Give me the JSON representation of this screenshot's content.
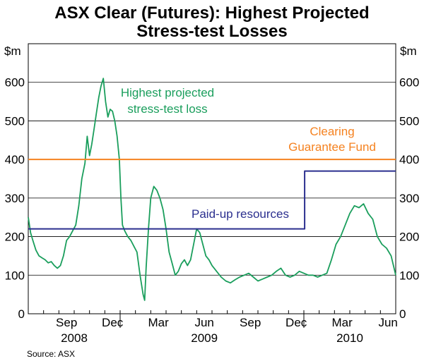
{
  "chart_data": {
    "type": "line",
    "title_line1": "ASX Clear (Futures): Highest Projected",
    "title_line2": "Stress-test Losses",
    "unit_left": "$m",
    "unit_right": "$m",
    "source": "Source: ASX",
    "ylim": [
      0,
      700
    ],
    "yticks": [
      "0",
      "100",
      "200",
      "300",
      "400",
      "500",
      "600"
    ],
    "ytick_values": [
      0,
      100,
      200,
      300,
      400,
      500,
      600
    ],
    "grid": true,
    "x_month_labels": [
      {
        "label": "Sep",
        "t": 2.5
      },
      {
        "label": "Dec",
        "t": 5.5
      },
      {
        "label": "Mar",
        "t": 8.5
      },
      {
        "label": "Jun",
        "t": 11.5
      },
      {
        "label": "Sep",
        "t": 14.5
      },
      {
        "label": "Dec",
        "t": 17.5
      },
      {
        "label": "Mar",
        "t": 20.5
      },
      {
        "label": "Jun",
        "t": 23.5
      }
    ],
    "x_year_labels": [
      {
        "label": "2008",
        "t": 3
      },
      {
        "label": "2009",
        "t": 11.5
      },
      {
        "label": "2010",
        "t": 21
      }
    ],
    "x_major_ticks": [
      6,
      18
    ],
    "x_range": [
      0,
      24
    ],
    "series": [
      {
        "name": "Highest projected stress-test loss",
        "label_line1": "Highest projected",
        "label_line2": "stress-test loss",
        "color": "#1a9e5c",
        "points": [
          [
            0.0,
            250
          ],
          [
            0.15,
            210
          ],
          [
            0.3,
            190
          ],
          [
            0.5,
            165
          ],
          [
            0.7,
            150
          ],
          [
            0.9,
            145
          ],
          [
            1.1,
            140
          ],
          [
            1.3,
            132
          ],
          [
            1.5,
            135
          ],
          [
            1.7,
            125
          ],
          [
            1.9,
            118
          ],
          [
            2.1,
            125
          ],
          [
            2.3,
            150
          ],
          [
            2.5,
            190
          ],
          [
            2.7,
            200
          ],
          [
            2.9,
            215
          ],
          [
            3.1,
            230
          ],
          [
            3.3,
            280
          ],
          [
            3.5,
            350
          ],
          [
            3.7,
            390
          ],
          [
            3.85,
            460
          ],
          [
            4.0,
            410
          ],
          [
            4.15,
            440
          ],
          [
            4.3,
            480
          ],
          [
            4.45,
            520
          ],
          [
            4.6,
            560
          ],
          [
            4.75,
            590
          ],
          [
            4.9,
            610
          ],
          [
            5.05,
            550
          ],
          [
            5.2,
            510
          ],
          [
            5.35,
            530
          ],
          [
            5.5,
            525
          ],
          [
            5.65,
            500
          ],
          [
            5.8,
            460
          ],
          [
            5.95,
            400
          ],
          [
            6.05,
            300
          ],
          [
            6.15,
            230
          ],
          [
            6.3,
            215
          ],
          [
            6.5,
            200
          ],
          [
            6.7,
            190
          ],
          [
            6.9,
            175
          ],
          [
            7.1,
            160
          ],
          [
            7.3,
            100
          ],
          [
            7.5,
            50
          ],
          [
            7.6,
            35
          ],
          [
            7.7,
            120
          ],
          [
            7.85,
            220
          ],
          [
            8.0,
            300
          ],
          [
            8.2,
            330
          ],
          [
            8.4,
            320
          ],
          [
            8.6,
            300
          ],
          [
            8.8,
            270
          ],
          [
            9.0,
            220
          ],
          [
            9.2,
            160
          ],
          [
            9.4,
            130
          ],
          [
            9.6,
            100
          ],
          [
            9.8,
            110
          ],
          [
            10.0,
            130
          ],
          [
            10.2,
            140
          ],
          [
            10.4,
            125
          ],
          [
            10.6,
            140
          ],
          [
            10.8,
            180
          ],
          [
            11.0,
            220
          ],
          [
            11.2,
            210
          ],
          [
            11.4,
            180
          ],
          [
            11.6,
            150
          ],
          [
            11.8,
            140
          ],
          [
            12.0,
            125
          ],
          [
            12.3,
            110
          ],
          [
            12.6,
            95
          ],
          [
            12.9,
            85
          ],
          [
            13.2,
            80
          ],
          [
            13.5,
            88
          ],
          [
            13.8,
            95
          ],
          [
            14.1,
            100
          ],
          [
            14.4,
            105
          ],
          [
            14.7,
            95
          ],
          [
            15.0,
            85
          ],
          [
            15.3,
            90
          ],
          [
            15.6,
            95
          ],
          [
            15.9,
            100
          ],
          [
            16.2,
            110
          ],
          [
            16.5,
            118
          ],
          [
            16.8,
            100
          ],
          [
            17.1,
            95
          ],
          [
            17.4,
            100
          ],
          [
            17.7,
            110
          ],
          [
            18.0,
            105
          ],
          [
            18.3,
            100
          ],
          [
            18.6,
            100
          ],
          [
            18.9,
            95
          ],
          [
            19.2,
            100
          ],
          [
            19.5,
            105
          ],
          [
            19.8,
            140
          ],
          [
            20.1,
            180
          ],
          [
            20.4,
            200
          ],
          [
            20.7,
            230
          ],
          [
            21.0,
            260
          ],
          [
            21.3,
            280
          ],
          [
            21.6,
            275
          ],
          [
            21.9,
            285
          ],
          [
            22.2,
            260
          ],
          [
            22.5,
            245
          ],
          [
            22.8,
            200
          ],
          [
            23.1,
            180
          ],
          [
            23.4,
            170
          ],
          [
            23.7,
            150
          ],
          [
            24.0,
            100
          ]
        ]
      },
      {
        "name": "Clearing Guarantee Fund",
        "label_line1": "Clearing",
        "label_line2": "Guarantee Fund",
        "color": "#f58220",
        "points": [
          [
            0,
            400
          ],
          [
            24,
            400
          ]
        ]
      },
      {
        "name": "Paid-up resources",
        "label_line1": "Paid-up resources",
        "color": "#2b2f8f",
        "points": [
          [
            0,
            220
          ],
          [
            18.05,
            220
          ],
          [
            18.05,
            370
          ],
          [
            24,
            370
          ]
        ]
      }
    ]
  }
}
